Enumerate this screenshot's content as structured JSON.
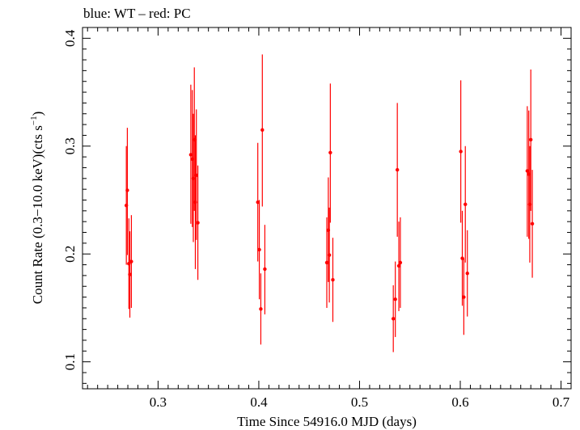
{
  "legend_text": "blue: WT – red: PC",
  "colors": {
    "pc": "#ff0000",
    "axis": "#000000"
  },
  "chart_data": {
    "type": "scatter",
    "title": "blue: WT – red: PC",
    "xlabel": "Time Since 54916.0 MJD (days)",
    "ylabel_parts": [
      "Count Rate (0.3−10.0 keV)(cts s",
      "−1",
      ")"
    ],
    "xlim": [
      0.225,
      0.71
    ],
    "ylim": [
      0.075,
      0.41
    ],
    "xticks": [
      0.3,
      0.4,
      0.5,
      0.6,
      0.7
    ],
    "xtick_labels": [
      "0.3",
      "0.4",
      "0.5",
      "0.6",
      "0.7"
    ],
    "yticks": [
      0.1,
      0.2,
      0.3,
      0.4
    ],
    "ytick_labels": [
      "0.1",
      "0.2",
      "0.3",
      "0.4"
    ],
    "x_minor_step": 0.01,
    "y_minor_step": 0.01,
    "series": [
      {
        "name": "PC",
        "color": "#ff0000",
        "points": [
          {
            "x": 0.2685,
            "y": 0.245,
            "lo": 0.19,
            "hi": 0.3
          },
          {
            "x": 0.2695,
            "y": 0.259,
            "lo": 0.199,
            "hi": 0.317
          },
          {
            "x": 0.271,
            "y": 0.191,
            "lo": 0.149,
            "hi": 0.233
          },
          {
            "x": 0.272,
            "y": 0.181,
            "lo": 0.141,
            "hi": 0.221
          },
          {
            "x": 0.2735,
            "y": 0.193,
            "lo": 0.15,
            "hi": 0.236
          },
          {
            "x": 0.3325,
            "y": 0.292,
            "lo": 0.228,
            "hi": 0.357
          },
          {
            "x": 0.334,
            "y": 0.288,
            "lo": 0.225,
            "hi": 0.352
          },
          {
            "x": 0.335,
            "y": 0.27,
            "lo": 0.211,
            "hi": 0.33
          },
          {
            "x": 0.336,
            "y": 0.306,
            "lo": 0.24,
            "hi": 0.373
          },
          {
            "x": 0.337,
            "y": 0.248,
            "lo": 0.186,
            "hi": 0.31
          },
          {
            "x": 0.338,
            "y": 0.273,
            "lo": 0.213,
            "hi": 0.334
          },
          {
            "x": 0.3395,
            "y": 0.229,
            "lo": 0.176,
            "hi": 0.282
          },
          {
            "x": 0.399,
            "y": 0.248,
            "lo": 0.193,
            "hi": 0.303
          },
          {
            "x": 0.4005,
            "y": 0.204,
            "lo": 0.158,
            "hi": 0.25
          },
          {
            "x": 0.402,
            "y": 0.149,
            "lo": 0.116,
            "hi": 0.182
          },
          {
            "x": 0.4035,
            "y": 0.315,
            "lo": 0.244,
            "hi": 0.385
          },
          {
            "x": 0.406,
            "y": 0.186,
            "lo": 0.144,
            "hi": 0.227
          },
          {
            "x": 0.4675,
            "y": 0.192,
            "lo": 0.15,
            "hi": 0.234
          },
          {
            "x": 0.469,
            "y": 0.222,
            "lo": 0.174,
            "hi": 0.271
          },
          {
            "x": 0.47,
            "y": 0.199,
            "lo": 0.155,
            "hi": 0.243
          },
          {
            "x": 0.471,
            "y": 0.294,
            "lo": 0.229,
            "hi": 0.358
          },
          {
            "x": 0.4735,
            "y": 0.176,
            "lo": 0.137,
            "hi": 0.215
          },
          {
            "x": 0.5335,
            "y": 0.14,
            "lo": 0.109,
            "hi": 0.171
          },
          {
            "x": 0.5355,
            "y": 0.158,
            "lo": 0.123,
            "hi": 0.193
          },
          {
            "x": 0.5375,
            "y": 0.278,
            "lo": 0.216,
            "hi": 0.34
          },
          {
            "x": 0.539,
            "y": 0.189,
            "lo": 0.147,
            "hi": 0.23
          },
          {
            "x": 0.5405,
            "y": 0.192,
            "lo": 0.15,
            "hi": 0.234
          },
          {
            "x": 0.6005,
            "y": 0.295,
            "lo": 0.229,
            "hi": 0.361
          },
          {
            "x": 0.602,
            "y": 0.196,
            "lo": 0.152,
            "hi": 0.24
          },
          {
            "x": 0.6035,
            "y": 0.16,
            "lo": 0.125,
            "hi": 0.196
          },
          {
            "x": 0.605,
            "y": 0.246,
            "lo": 0.192,
            "hi": 0.3
          },
          {
            "x": 0.607,
            "y": 0.182,
            "lo": 0.142,
            "hi": 0.222
          },
          {
            "x": 0.6665,
            "y": 0.277,
            "lo": 0.216,
            "hi": 0.337
          },
          {
            "x": 0.668,
            "y": 0.274,
            "lo": 0.214,
            "hi": 0.333
          },
          {
            "x": 0.669,
            "y": 0.246,
            "lo": 0.192,
            "hi": 0.3
          },
          {
            "x": 0.67,
            "y": 0.306,
            "lo": 0.24,
            "hi": 0.371
          },
          {
            "x": 0.6715,
            "y": 0.228,
            "lo": 0.178,
            "hi": 0.278
          }
        ]
      }
    ]
  }
}
